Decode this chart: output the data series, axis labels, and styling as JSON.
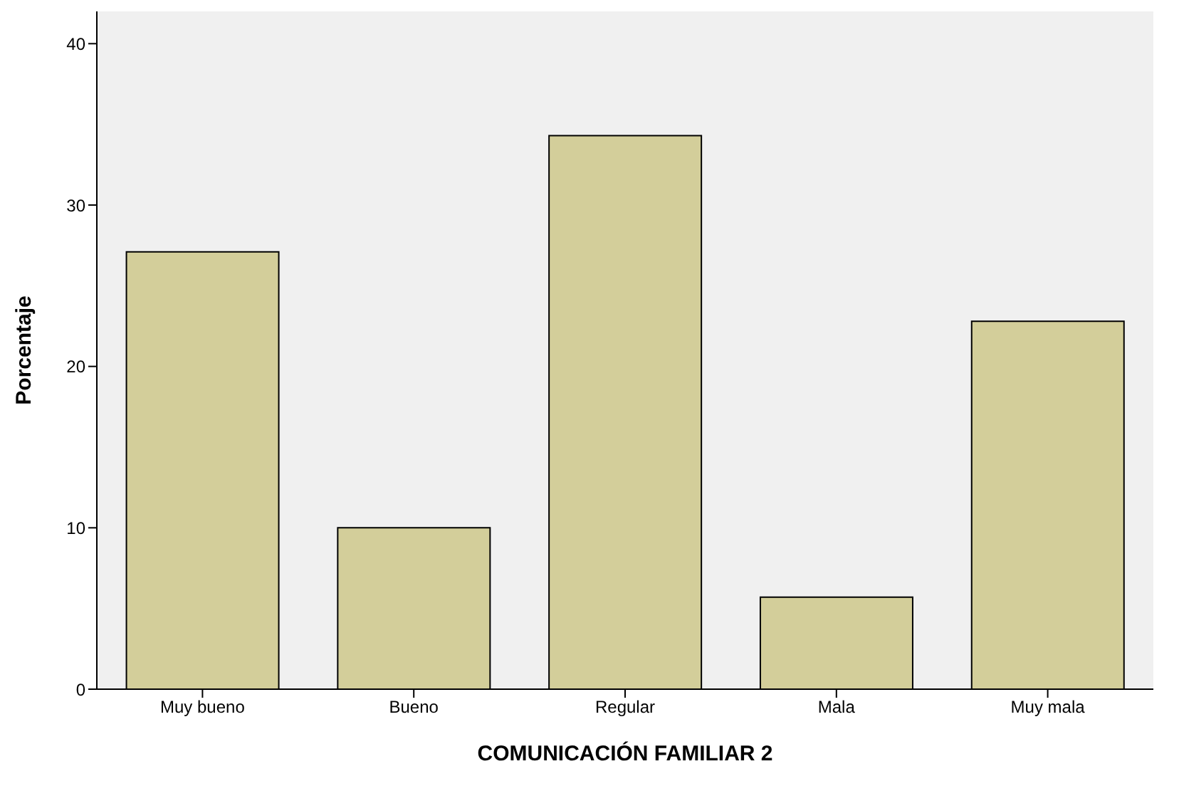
{
  "chart_data": {
    "type": "bar",
    "xlabel": "COMUNICACIÓN FAMILIAR 2",
    "ylabel": "Porcentaje",
    "categories": [
      "Muy bueno",
      "Bueno",
      "Regular",
      "Mala",
      "Muy mala"
    ],
    "values": [
      27.1,
      10.0,
      34.3,
      5.7,
      22.8
    ],
    "color": "#d3ce9a",
    "ylim": [
      0,
      42
    ],
    "yticks": [
      0,
      10,
      20,
      30,
      40
    ],
    "grid": false,
    "legend": false
  }
}
